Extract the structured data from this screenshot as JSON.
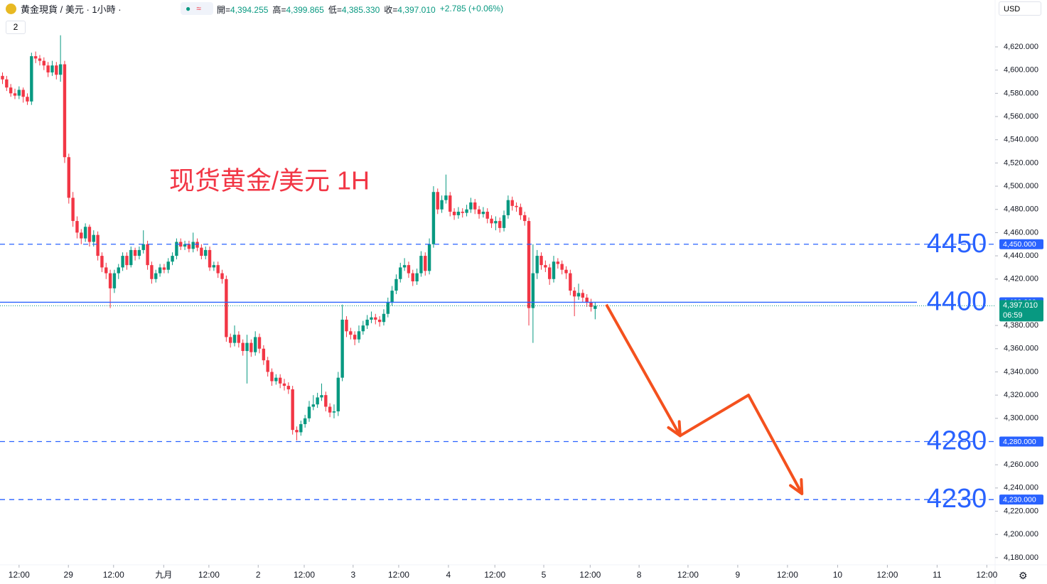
{
  "header": {
    "title": "黄金現貨 / 美元 · 1小時 ·",
    "indicator_count": "2",
    "currency": "USD",
    "ohlc": [
      {
        "label": "開",
        "value": "4,394.255"
      },
      {
        "label": "高",
        "value": "4,399.865"
      },
      {
        "label": "低",
        "value": "4,385.330"
      },
      {
        "label": "收",
        "value": "4,397.010"
      }
    ],
    "change": "+2.785 (+0.06%)"
  },
  "chart_data": {
    "type": "candlestick",
    "annotation": "现货黄金/美元 1H",
    "up_color": "#089981",
    "down_color": "#f23645",
    "xlim": [
      -0.6,
      239.5
    ],
    "ylim": [
      4173.8,
      4660.4
    ],
    "xticks": [
      {
        "value": 4.0,
        "label": "12:00"
      },
      {
        "value": 15.9,
        "label": "29"
      },
      {
        "value": 26.8,
        "label": "12:00"
      },
      {
        "value": 38.9,
        "label": "九月"
      },
      {
        "value": 49.8,
        "label": "12:00"
      },
      {
        "value": 61.7,
        "label": "2"
      },
      {
        "value": 72.8,
        "label": "12:00"
      },
      {
        "value": 84.6,
        "label": "3"
      },
      {
        "value": 95.6,
        "label": "12:00"
      },
      {
        "value": 107.6,
        "label": "4"
      },
      {
        "value": 118.8,
        "label": "12:00"
      },
      {
        "value": 130.6,
        "label": "5"
      },
      {
        "value": 141.8,
        "label": "12:00"
      },
      {
        "value": 153.6,
        "label": "8"
      },
      {
        "value": 165.4,
        "label": "12:00"
      },
      {
        "value": 177.4,
        "label": "9"
      },
      {
        "value": 189.4,
        "label": "12:00"
      },
      {
        "value": 201.5,
        "label": "10"
      },
      {
        "value": 213.5,
        "label": "12:00"
      },
      {
        "value": 225.5,
        "label": "11"
      },
      {
        "value": 237.5,
        "label": "12:00"
      }
    ],
    "yticks": [
      {
        "value": 4180,
        "label": "4,180.000"
      },
      {
        "value": 4200,
        "label": "4,200.000"
      },
      {
        "value": 4220,
        "label": "4,220.000"
      },
      {
        "value": 4240,
        "label": "4,240.000"
      },
      {
        "value": 4260,
        "label": "4,260.000"
      },
      {
        "value": 4300,
        "label": "4,300.000"
      },
      {
        "value": 4320,
        "label": "4,320.000"
      },
      {
        "value": 4340,
        "label": "4,340.000"
      },
      {
        "value": 4360,
        "label": "4,360.000"
      },
      {
        "value": 4380,
        "label": "4,380.000"
      },
      {
        "value": 4420,
        "label": "4,420.000"
      },
      {
        "value": 4440,
        "label": "4,440.000"
      },
      {
        "value": 4460,
        "label": "4,460.000"
      },
      {
        "value": 4480,
        "label": "4,480.000"
      },
      {
        "value": 4500,
        "label": "4,500.000"
      },
      {
        "value": 4520,
        "label": "4,520.000"
      },
      {
        "value": 4540,
        "label": "4,540.000"
      },
      {
        "value": 4560,
        "label": "4,560.000"
      },
      {
        "value": 4580,
        "label": "4,580.000"
      },
      {
        "value": 4600,
        "label": "4,600.000"
      },
      {
        "value": 4620,
        "label": "4,620.000"
      }
    ],
    "levels": [
      {
        "value": 4450,
        "label": "4,450.000",
        "style": "dashed",
        "color": "#2962ff"
      },
      {
        "value": 4400,
        "label": "4,400.000",
        "style": "solid",
        "color": "#2962ff"
      },
      {
        "value": 4280,
        "label": "4,280.000",
        "style": "dashed",
        "color": "#2962ff"
      },
      {
        "value": 4230,
        "label": "4,230.000",
        "style": "dashed",
        "color": "#2962ff"
      }
    ],
    "current_price": {
      "value": 4397.01,
      "label": "4,397.010",
      "countdown": "06:59",
      "color": "#089981"
    },
    "forecast": {
      "x": [
        145.7,
        163.5,
        180,
        192.9
      ],
      "y": [
        4398,
        4285,
        4320,
        4235
      ],
      "color": "#f4511e"
    },
    "candles": [
      [
        4595,
        4598,
        4588,
        4592
      ],
      [
        4592,
        4595,
        4582,
        4585
      ],
      [
        4585,
        4588,
        4577,
        4580
      ],
      [
        4580,
        4584,
        4575,
        4578
      ],
      [
        4578,
        4586,
        4575,
        4583
      ],
      [
        4583,
        4585,
        4572,
        4577
      ],
      [
        4577,
        4580,
        4570,
        4573
      ],
      [
        4573,
        4615,
        4570,
        4612
      ],
      [
        4612,
        4616,
        4606,
        4610
      ],
      [
        4610,
        4613,
        4604,
        4608
      ],
      [
        4608,
        4611,
        4600,
        4604
      ],
      [
        4604,
        4607,
        4594,
        4598
      ],
      [
        4598,
        4608,
        4595,
        4604
      ],
      [
        4604,
        4607,
        4592,
        4596
      ],
      [
        4596,
        4630,
        4590,
        4605
      ],
      [
        4605,
        4608,
        4520,
        4525
      ],
      [
        4525,
        4528,
        4485,
        4490
      ],
      [
        4490,
        4495,
        4465,
        4470
      ],
      [
        4470,
        4474,
        4455,
        4460
      ],
      [
        4460,
        4463,
        4450,
        4455
      ],
      [
        4455,
        4468,
        4452,
        4465
      ],
      [
        4465,
        4467,
        4448,
        4452
      ],
      [
        4452,
        4462,
        4448,
        4458
      ],
      [
        4458,
        4461,
        4436,
        4440
      ],
      [
        4440,
        4443,
        4426,
        4430
      ],
      [
        4430,
        4434,
        4420,
        4425
      ],
      [
        4425,
        4428,
        4395,
        4412
      ],
      [
        4412,
        4428,
        4408,
        4425
      ],
      [
        4425,
        4433,
        4420,
        4430
      ],
      [
        4430,
        4443,
        4427,
        4440
      ],
      [
        4440,
        4443,
        4428,
        4432
      ],
      [
        4432,
        4448,
        4430,
        4445
      ],
      [
        4445,
        4447,
        4436,
        4440
      ],
      [
        4440,
        4448,
        4437,
        4445
      ],
      [
        4445,
        4462,
        4442,
        4450
      ],
      [
        4450,
        4453,
        4428,
        4432
      ],
      [
        4432,
        4435,
        4416,
        4420
      ],
      [
        4420,
        4428,
        4417,
        4425
      ],
      [
        4425,
        4433,
        4422,
        4430
      ],
      [
        4430,
        4433,
        4425,
        4428
      ],
      [
        4428,
        4438,
        4425,
        4435
      ],
      [
        4435,
        4443,
        4432,
        4440
      ],
      [
        4440,
        4455,
        4437,
        4452
      ],
      [
        4452,
        4455,
        4445,
        4448
      ],
      [
        4448,
        4453,
        4445,
        4450
      ],
      [
        4450,
        4453,
        4443,
        4446
      ],
      [
        4446,
        4460,
        4443,
        4452
      ],
      [
        4452,
        4455,
        4444,
        4447
      ],
      [
        4447,
        4450,
        4437,
        4440
      ],
      [
        4440,
        4448,
        4437,
        4445
      ],
      [
        4445,
        4448,
        4427,
        4430
      ],
      [
        4430,
        4435,
        4427,
        4432
      ],
      [
        4432,
        4435,
        4421,
        4425
      ],
      [
        4425,
        4428,
        4416,
        4420
      ],
      [
        4420,
        4423,
        4366,
        4370
      ],
      [
        4370,
        4373,
        4361,
        4365
      ],
      [
        4365,
        4380,
        4362,
        4372
      ],
      [
        4372,
        4375,
        4361,
        4365
      ],
      [
        4365,
        4368,
        4354,
        4358
      ],
      [
        4358,
        4372,
        4330,
        4365
      ],
      [
        4365,
        4368,
        4353,
        4357
      ],
      [
        4357,
        4375,
        4354,
        4370
      ],
      [
        4370,
        4373,
        4356,
        4360
      ],
      [
        4360,
        4363,
        4346,
        4350
      ],
      [
        4350,
        4353,
        4336,
        4340
      ],
      [
        4340,
        4343,
        4328,
        4332
      ],
      [
        4332,
        4338,
        4329,
        4335
      ],
      [
        4335,
        4338,
        4326,
        4330
      ],
      [
        4330,
        4334,
        4324,
        4328
      ],
      [
        4328,
        4331,
        4321,
        4325
      ],
      [
        4325,
        4328,
        4286,
        4290
      ],
      [
        4290,
        4293,
        4281,
        4288
      ],
      [
        4288,
        4298,
        4285,
        4295
      ],
      [
        4295,
        4303,
        4292,
        4300
      ],
      [
        4300,
        4315,
        4297,
        4310
      ],
      [
        4310,
        4320,
        4307,
        4312
      ],
      [
        4312,
        4322,
        4309,
        4318
      ],
      [
        4318,
        4330,
        4315,
        4320
      ],
      [
        4320,
        4323,
        4306,
        4310
      ],
      [
        4310,
        4313,
        4301,
        4305
      ],
      [
        4305,
        4312,
        4300,
        4306
      ],
      [
        4306,
        4340,
        4302,
        4335
      ],
      [
        4335,
        4398,
        4332,
        4385
      ],
      [
        4385,
        4388,
        4370,
        4375
      ],
      [
        4375,
        4378,
        4368,
        4372
      ],
      [
        4372,
        4375,
        4363,
        4368
      ],
      [
        4368,
        4380,
        4365,
        4375
      ],
      [
        4375,
        4384,
        4372,
        4380
      ],
      [
        4380,
        4389,
        4377,
        4385
      ],
      [
        4385,
        4392,
        4382,
        4387
      ],
      [
        4387,
        4390,
        4381,
        4385
      ],
      [
        4385,
        4388,
        4379,
        4383
      ],
      [
        4383,
        4394,
        4380,
        4390
      ],
      [
        4390,
        4404,
        4387,
        4400
      ],
      [
        4400,
        4414,
        4397,
        4410
      ],
      [
        4410,
        4424,
        4407,
        4420
      ],
      [
        4420,
        4434,
        4417,
        4430
      ],
      [
        4430,
        4438,
        4427,
        4432
      ],
      [
        4432,
        4435,
        4421,
        4425
      ],
      [
        4425,
        4428,
        4414,
        4418
      ],
      [
        4418,
        4429,
        4415,
        4425
      ],
      [
        4425,
        4444,
        4422,
        4440
      ],
      [
        4440,
        4443,
        4423,
        4427
      ],
      [
        4427,
        4455,
        4424,
        4450
      ],
      [
        4450,
        4500,
        4447,
        4495
      ],
      [
        4495,
        4498,
        4476,
        4480
      ],
      [
        4480,
        4492,
        4477,
        4488
      ],
      [
        4488,
        4510,
        4485,
        4492
      ],
      [
        4492,
        4495,
        4474,
        4478
      ],
      [
        4478,
        4481,
        4471,
        4475
      ],
      [
        4475,
        4482,
        4472,
        4478
      ],
      [
        4478,
        4481,
        4473,
        4477
      ],
      [
        4477,
        4484,
        4474,
        4480
      ],
      [
        4480,
        4490,
        4477,
        4486
      ],
      [
        4486,
        4489,
        4476,
        4480
      ],
      [
        4480,
        4483,
        4472,
        4476
      ],
      [
        4476,
        4482,
        4473,
        4478
      ],
      [
        4478,
        4481,
        4468,
        4472
      ],
      [
        4472,
        4475,
        4464,
        4468
      ],
      [
        4468,
        4474,
        4462,
        4470
      ],
      [
        4470,
        4473,
        4460,
        4464
      ],
      [
        4464,
        4479,
        4461,
        4475
      ],
      [
        4475,
        4492,
        4472,
        4488
      ],
      [
        4488,
        4491,
        4479,
        4483
      ],
      [
        4483,
        4486,
        4478,
        4482
      ],
      [
        4482,
        4485,
        4471,
        4475
      ],
      [
        4475,
        4478,
        4466,
        4470
      ],
      [
        4470,
        4473,
        4380,
        4395
      ],
      [
        4395,
        4450,
        4365,
        4425
      ],
      [
        4425,
        4445,
        4420,
        4440
      ],
      [
        4440,
        4443,
        4428,
        4432
      ],
      [
        4432,
        4436,
        4426,
        4430
      ],
      [
        4430,
        4433,
        4415,
        4420
      ],
      [
        4420,
        4440,
        4417,
        4435
      ],
      [
        4435,
        4438,
        4429,
        4433
      ],
      [
        4433,
        4436,
        4424,
        4428
      ],
      [
        4428,
        4431,
        4420,
        4425
      ],
      [
        4425,
        4428,
        4406,
        4410
      ],
      [
        4410,
        4413,
        4388,
        4405
      ],
      [
        4405,
        4416,
        4402,
        4408
      ],
      [
        4408,
        4411,
        4400,
        4404
      ],
      [
        4404,
        4407,
        4396,
        4400
      ],
      [
        4400,
        4403,
        4392,
        4396
      ],
      [
        4394.255,
        4399.865,
        4385.33,
        4397.01
      ]
    ]
  }
}
